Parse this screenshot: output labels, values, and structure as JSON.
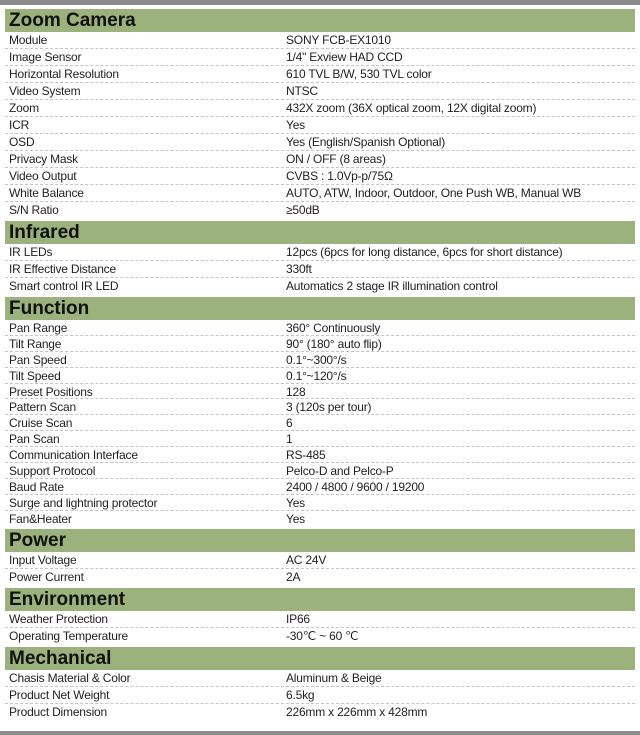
{
  "colors": {
    "header_bg": "#9cb27c",
    "border": "#8a8a8a"
  },
  "sections": [
    {
      "title": "Zoom Camera",
      "rows": [
        {
          "label": "Module",
          "value": "SONY FCB-EX1010"
        },
        {
          "label": "Image Sensor",
          "value": "1/4\" Exview HAD CCD"
        },
        {
          "label": "Horizontal Resolution",
          "value": "610 TVL B/W, 530 TVL color"
        },
        {
          "label": "Video System",
          "value": "NTSC"
        },
        {
          "label": "Zoom",
          "value": "432X  zoom (36X optical zoom, 12X digital zoom)"
        },
        {
          "label": "ICR",
          "value": "Yes"
        },
        {
          "label": "OSD",
          "value": "Yes (English/Spanish Optional)"
        },
        {
          "label": "Privacy Mask",
          "value": "ON / OFF (8 areas)"
        },
        {
          "label": "Video Output",
          "value": "CVBS : 1.0Vp-p/75Ω"
        },
        {
          "label": "White Balance",
          "value": "AUTO, ATW, Indoor, Outdoor, One Push WB, Manual WB"
        },
        {
          "label": "S/N Ratio",
          "value": "≥50dB"
        }
      ]
    },
    {
      "title": "Infrared",
      "rows": [
        {
          "label": "IR LEDs",
          "value": "12pcs  (6pcs for long distance, 6pcs for short distance)"
        },
        {
          "label": "IR Effective Distance",
          "value": "330ft"
        },
        {
          "label": "Smart control IR LED",
          "value": "Automatics 2 stage IR illumination control"
        }
      ]
    },
    {
      "title": "Function",
      "rows": [
        {
          "label": "Pan  Range",
          "value": "360° Continuously"
        },
        {
          "label": "Tilt  Range",
          "value": "90° (180° auto flip)"
        },
        {
          "label": "Pan Speed",
          "value": "0.1°~300°/s"
        },
        {
          "label": "Tilt Speed",
          "value": "0.1°~120°/s"
        },
        {
          "label": "Preset Positions",
          "value": "128"
        },
        {
          "label": "Pattern Scan",
          "value": "3 (120s per tour)"
        },
        {
          "label": "Cruise Scan",
          "value": "6"
        },
        {
          "label": "Pan Scan",
          "value": "1"
        },
        {
          "label": "Communication Interface",
          "value": "RS-485"
        },
        {
          "label": "Support Protocol",
          "value": "Pelco-D and Pelco-P"
        },
        {
          "label": "Baud Rate",
          "value": "2400 / 4800 / 9600 / 19200"
        },
        {
          "label": "Surge and lightning protector",
          "value": "Yes"
        },
        {
          "label": "Fan&Heater",
          "value": "Yes"
        }
      ]
    },
    {
      "title": "Power",
      "rows": [
        {
          "label": "Input Voltage",
          "value": "AC 24V"
        },
        {
          "label": "Power Current",
          "value": "2A"
        }
      ]
    },
    {
      "title": "Environment",
      "rows": [
        {
          "label": "Weather Protection",
          "value": "IP66"
        },
        {
          "label": "Operating Temperature",
          "value": "-30℃ ~ 60 ℃"
        }
      ]
    },
    {
      "title": "Mechanical",
      "rows": [
        {
          "label": "Chasis Material & Color",
          "value": "Aluminum & Beige"
        },
        {
          "label": "Product Net Weight",
          "value": "6.5kg"
        },
        {
          "label": "Product Dimension",
          "value": "226mm x 226mm x 428mm"
        }
      ]
    }
  ]
}
